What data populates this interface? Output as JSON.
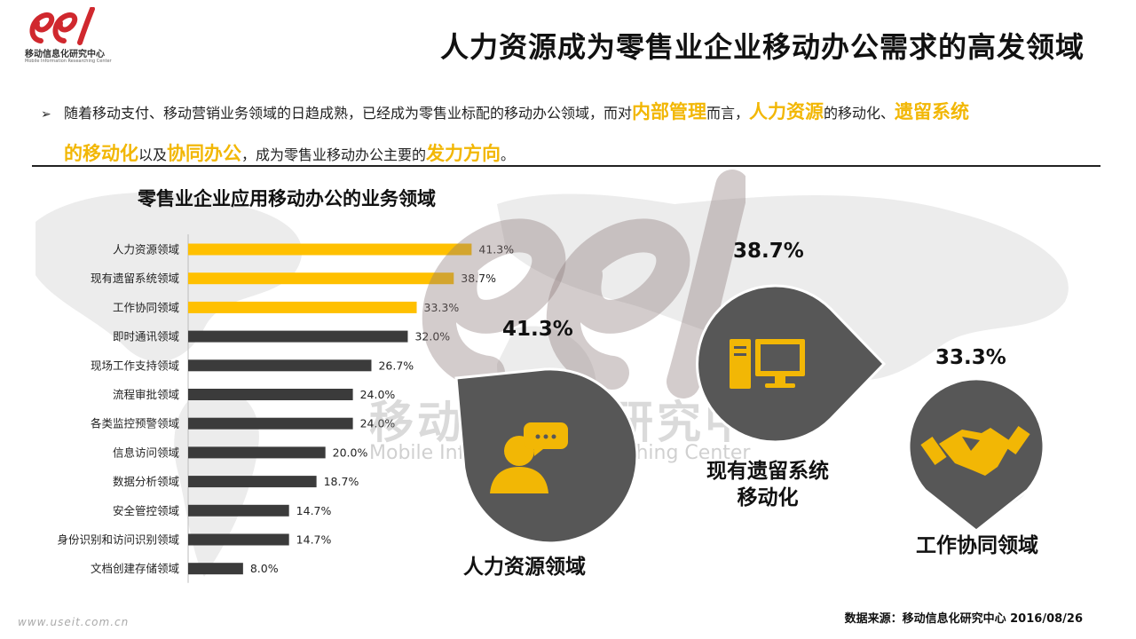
{
  "header": {
    "logo_cn": "移动信息化研究中心",
    "logo_en": "Mobile Information Researching Center",
    "title": "人力资源成为零售业企业移动办公需求的高发领域"
  },
  "bullet": {
    "arrow": "➢",
    "t1": "随着移动支付、移动营销业务领域的日趋成熟，已经成为零售业标配的移动办公领域，而对",
    "h1": "内部管理",
    "t2": "而言，",
    "h2": "人力资源",
    "t3": "的移动化、",
    "h3": "遗留系统",
    "h4": "的移动化",
    "t4": "以及",
    "h5": "协同办公",
    "t5": "，成为零售业移动办公主要的",
    "h6": "发力方向",
    "t6": "。"
  },
  "colors": {
    "highlight": "#f2b705",
    "bar_top": "#ffc000",
    "bar_rest": "#3b3b3b",
    "pin_fill": "#575757",
    "icon": "#f2b705"
  },
  "chart_data": {
    "type": "bar",
    "orientation": "horizontal",
    "title": "零售业企业应用移动办公的业务领域",
    "categories": [
      "人力资源领域",
      "现有遗留系统领域",
      "工作协同领域",
      "即时通讯领域",
      "现场工作支持领域",
      "流程审批领域",
      "各类监控预警领域",
      "信息访问领域",
      "数据分析领域",
      "安全管控领域",
      "身份识别和访问识别领域",
      "文档创建存储领域"
    ],
    "values": [
      41.3,
      38.7,
      33.3,
      32.0,
      26.7,
      24.0,
      24.0,
      20.0,
      18.7,
      14.7,
      14.7,
      8.0
    ],
    "value_labels": [
      "41.3%",
      "38.7%",
      "33.3%",
      "32.0%",
      "26.7%",
      "24.0%",
      "24.0%",
      "20.0%",
      "18.7%",
      "14.7%",
      "14.7%",
      "8.0%"
    ],
    "highlighted_count": 3,
    "xlim": [
      0,
      45
    ],
    "grid": false,
    "legend": "none"
  },
  "pins": [
    {
      "pct": "41.3%",
      "name": "人力资源领域",
      "icon": "person-chat-icon"
    },
    {
      "pct": "38.7%",
      "name_line1": "现有遗留系统",
      "name_line2": "移动化",
      "icon": "computer-icon"
    },
    {
      "pct": "33.3%",
      "name": "工作协同领域",
      "icon": "handshake-icon"
    }
  ],
  "watermark": {
    "cn": "移动信息化研究中心",
    "en": "Mobile Information Researching Center"
  },
  "footer": {
    "source": "数据来源：移动信息化研究中心 2016/08/26",
    "url": "www.useit.com.cn"
  }
}
